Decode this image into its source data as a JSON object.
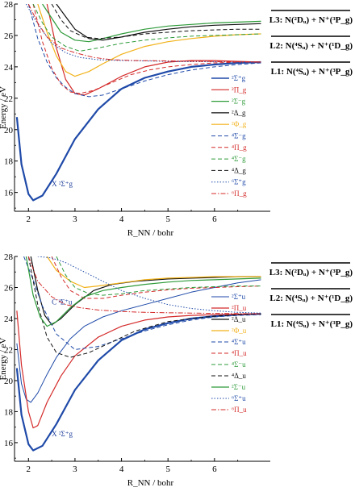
{
  "chart_data": [
    {
      "type": "line",
      "title": "",
      "xlabel": "R_NN / bohr",
      "ylabel": "Energy / eV",
      "xlim": [
        1.7,
        7.2
      ],
      "ylim": [
        14.8,
        28
      ],
      "xticks": [
        2,
        3,
        4,
        5,
        6
      ],
      "yticks": [
        16,
        18,
        20,
        22,
        24,
        26,
        28
      ],
      "grid": false,
      "legend_position": "right",
      "thresholds": [
        {
          "label": "L3: N(²Dᵤ) + N⁺(³P_g)",
          "y": 26.7
        },
        {
          "label": "L2: N(⁴Sᵤ) + N⁺(¹D_g)",
          "y": 25.6
        },
        {
          "label": "L1: N(⁴Sᵤ) + N⁺(³P_g)",
          "y": 24.3
        }
      ],
      "annotations": [
        {
          "text": "X ²Σ⁺g",
          "x": 2.5,
          "y": 16.4
        }
      ],
      "series": [
        {
          "name": "²Σ⁺g",
          "color": "#1f4aa8",
          "dash": "solid",
          "width": 2.2,
          "x": [
            1.75,
            1.85,
            2.0,
            2.1,
            2.3,
            2.6,
            3.0,
            3.5,
            4.0,
            4.5,
            5.0,
            5.5,
            6.0,
            6.5,
            7.0
          ],
          "y": [
            20.8,
            17.8,
            15.9,
            15.5,
            15.8,
            17.2,
            19.4,
            21.3,
            22.6,
            23.3,
            23.7,
            24.0,
            24.15,
            24.25,
            24.3
          ]
        },
        {
          "name": "²Π_g",
          "color": "#d42a2a",
          "dash": "solid",
          "width": 1.2,
          "x": [
            2.4,
            2.6,
            2.8,
            3.0,
            3.2,
            3.5,
            4.0,
            4.5,
            5.0,
            5.5,
            6.0,
            6.5,
            7.0
          ],
          "y": [
            28,
            25.2,
            23.2,
            22.3,
            22.2,
            22.6,
            23.4,
            24.0,
            24.3,
            24.4,
            24.4,
            24.35,
            24.3
          ]
        },
        {
          "name": "²Σ⁻g",
          "color": "#2e9b3a",
          "dash": "solid",
          "width": 1.2,
          "x": [
            2.3,
            2.5,
            2.7,
            3.0,
            3.3,
            3.6,
            4.0,
            4.5,
            5.0,
            5.5,
            6.0,
            6.5,
            7.0
          ],
          "y": [
            28,
            27.1,
            26.2,
            25.7,
            25.6,
            25.8,
            26.1,
            26.4,
            26.6,
            26.7,
            26.8,
            26.85,
            26.9
          ]
        },
        {
          "name": "²Δ_g",
          "color": "#111111",
          "dash": "solid",
          "width": 1.2,
          "x": [
            2.6,
            2.8,
            3.0,
            3.3,
            3.6,
            4.0,
            4.5,
            5.0,
            5.5,
            6.0,
            6.5,
            7.0
          ],
          "y": [
            28,
            27.2,
            26.4,
            25.8,
            25.7,
            25.9,
            26.2,
            26.4,
            26.55,
            26.65,
            26.7,
            26.75
          ]
        },
        {
          "name": "²Φ_g",
          "color": "#f2b21a",
          "dash": "solid",
          "width": 1.2,
          "x": [
            2.2,
            2.4,
            2.6,
            2.8,
            3.0,
            3.3,
            3.6,
            4.0,
            4.5,
            5.0,
            5.5,
            6.0,
            6.5,
            7.0
          ],
          "y": [
            28,
            26.2,
            24.7,
            23.7,
            23.4,
            23.7,
            24.2,
            24.8,
            25.3,
            25.6,
            25.8,
            25.95,
            26.05,
            26.1
          ]
        },
        {
          "name": "⁴Σ⁻g",
          "color": "#1f4aa8",
          "dash": "dash",
          "width": 1.0,
          "x": [
            2.0,
            2.2,
            2.4,
            2.6,
            2.8,
            3.0,
            3.3,
            3.6,
            4.0,
            4.5,
            5.0,
            5.5,
            6.0,
            6.5,
            7.0
          ],
          "y": [
            28,
            25.8,
            24.3,
            23.3,
            22.7,
            22.3,
            22.1,
            22.2,
            22.6,
            23.1,
            23.5,
            23.8,
            24.0,
            24.15,
            24.25
          ]
        },
        {
          "name": "⁴Π_g",
          "color": "#d42a2a",
          "dash": "dash",
          "width": 1.0,
          "x": [
            2.1,
            2.3,
            2.5,
            2.7,
            2.9,
            3.1,
            3.4,
            3.8,
            4.2,
            4.6,
            5.0,
            5.5,
            6.0,
            6.5,
            7.0
          ],
          "y": [
            28,
            25.6,
            23.9,
            22.9,
            22.4,
            22.3,
            22.5,
            23.0,
            23.5,
            23.8,
            24.0,
            24.15,
            24.25,
            24.3,
            24.3
          ]
        },
        {
          "name": "⁴Σ⁻g",
          "color": "#2e9b3a",
          "dash": "dash",
          "width": 1.0,
          "x": [
            2.1,
            2.3,
            2.5,
            2.8,
            3.1,
            3.5,
            4.0,
            4.5,
            5.0,
            5.5,
            6.0,
            6.5,
            7.0
          ],
          "y": [
            28,
            26.8,
            25.9,
            25.3,
            25.0,
            25.2,
            25.5,
            25.7,
            25.85,
            25.95,
            26.0,
            26.05,
            26.1
          ]
        },
        {
          "name": "⁴Δ_g",
          "color": "#111111",
          "dash": "dash",
          "width": 1.0,
          "x": [
            2.5,
            2.7,
            2.9,
            3.2,
            3.5,
            4.0,
            4.5,
            5.0,
            5.5,
            6.0,
            6.5,
            7.0
          ],
          "y": [
            28,
            27.0,
            26.3,
            25.9,
            25.8,
            25.9,
            26.1,
            26.2,
            26.3,
            26.35,
            26.4,
            26.4
          ]
        },
        {
          "name": "⁶Σ⁺g",
          "color": "#1f4aa8",
          "dash": "dot",
          "width": 1.0,
          "x": [
            1.95,
            2.1,
            2.3,
            2.5,
            2.8,
            3.1,
            3.5,
            4.0,
            4.5,
            5.0,
            5.5,
            6.0,
            6.5,
            7.0
          ],
          "y": [
            28,
            27.2,
            26.3,
            25.5,
            24.9,
            24.6,
            24.45,
            24.4,
            24.38,
            24.35,
            24.33,
            24.32,
            24.31,
            24.3
          ]
        },
        {
          "name": "⁶Π_g",
          "color": "#d42a2a",
          "dash": "dashdot",
          "width": 1.0,
          "x": [
            2.0,
            2.2,
            2.4,
            2.7,
            3.0,
            3.4,
            3.8,
            4.3,
            5.0,
            5.5,
            6.0,
            6.5,
            7.0
          ],
          "y": [
            28,
            26.8,
            25.9,
            25.2,
            24.9,
            24.6,
            24.45,
            24.4,
            24.38,
            24.36,
            24.34,
            24.32,
            24.3
          ]
        }
      ]
    },
    {
      "type": "line",
      "title": "",
      "xlabel": "R_NN / bohr",
      "ylabel": "Energy / eV",
      "xlim": [
        1.7,
        7.2
      ],
      "ylim": [
        14.8,
        28
      ],
      "xticks": [
        2,
        3,
        4,
        5,
        6
      ],
      "yticks": [
        16,
        18,
        20,
        22,
        24,
        26,
        28
      ],
      "grid": false,
      "legend_position": "right",
      "thresholds": [
        {
          "label": "L3: N(²Dᵤ) + N⁺(³P_g)",
          "y": 26.7
        },
        {
          "label": "L2: N(⁴Sᵤ) + N⁺(¹D_g)",
          "y": 25.6
        },
        {
          "label": "L1: N(⁴Sᵤ) + N⁺(³P_g)",
          "y": 24.3
        }
      ],
      "annotations": [
        {
          "text": "X ²Σ⁺g",
          "x": 2.5,
          "y": 16.4
        },
        {
          "text": "C ²Σ⁺u",
          "x": 2.5,
          "y": 24.9
        }
      ],
      "series": [
        {
          "name": "X ²Σ⁺g",
          "color": "#1f4aa8",
          "dash": "solid",
          "width": 2.2,
          "x": [
            1.75,
            1.85,
            2.0,
            2.1,
            2.3,
            2.6,
            3.0,
            3.5,
            4.0,
            4.5,
            5.0,
            5.5,
            6.0,
            6.5,
            7.0
          ],
          "y": [
            20.8,
            17.8,
            15.9,
            15.5,
            15.8,
            17.2,
            19.4,
            21.3,
            22.6,
            23.3,
            23.7,
            24.0,
            24.15,
            24.25,
            24.3
          ]
        },
        {
          "name": "²Σ⁺u",
          "color": "#1f4aa8",
          "dash": "solid",
          "width": 1.0,
          "x": [
            1.75,
            1.85,
            1.95,
            2.05,
            2.2,
            2.4,
            2.6,
            2.9,
            3.2,
            3.6,
            4.0,
            4.5,
            5.0,
            5.5,
            6.0,
            6.5,
            7.0
          ],
          "y": [
            22.4,
            19.8,
            18.8,
            18.6,
            19.2,
            20.4,
            21.5,
            22.7,
            23.5,
            24.1,
            24.5,
            24.9,
            25.3,
            25.7,
            26.0,
            26.3,
            26.5
          ]
        },
        {
          "name": "²Π_u",
          "color": "#d42a2a",
          "dash": "solid",
          "width": 1.2,
          "x": [
            1.75,
            1.85,
            2.0,
            2.1,
            2.2,
            2.4,
            2.7,
            3.0,
            3.5,
            4.0,
            4.5,
            5.0,
            5.5,
            6.0,
            6.5,
            7.0
          ],
          "y": [
            24.5,
            21.0,
            18.0,
            16.95,
            17.1,
            18.6,
            20.3,
            21.6,
            22.8,
            23.5,
            23.9,
            24.1,
            24.2,
            24.25,
            24.28,
            24.3
          ]
        },
        {
          "name": "²Δ_u",
          "color": "#111111",
          "dash": "solid",
          "width": 1.2,
          "x": [
            2.05,
            2.2,
            2.35,
            2.5,
            2.7,
            3.0,
            3.4,
            3.8,
            4.3,
            5.0,
            5.5,
            6.0,
            6.5,
            7.0
          ],
          "y": [
            28,
            25.8,
            24.2,
            23.6,
            24.0,
            24.9,
            25.8,
            26.2,
            26.4,
            26.55,
            26.6,
            26.65,
            26.7,
            26.7
          ]
        },
        {
          "name": "²Φ_u",
          "color": "#f2b21a",
          "dash": "solid",
          "width": 1.2,
          "x": [
            2.4,
            2.6,
            2.9,
            3.2,
            3.5,
            4.0,
            4.5,
            5.0,
            5.5,
            6.0,
            6.5,
            7.0
          ],
          "y": [
            28,
            27.1,
            26.4,
            26.0,
            26.1,
            26.3,
            26.5,
            26.6,
            26.65,
            26.7,
            26.7,
            26.7
          ]
        },
        {
          "name": "⁴Σ⁺u",
          "color": "#1f4aa8",
          "dash": "dash",
          "width": 1.0,
          "x": [
            1.9,
            2.1,
            2.3,
            2.6,
            3.0,
            3.5,
            4.0,
            4.5,
            5.0,
            5.5,
            6.0,
            6.5,
            7.0
          ],
          "y": [
            28,
            26.5,
            24.8,
            23.0,
            22.0,
            22.2,
            22.7,
            23.2,
            23.6,
            23.9,
            24.1,
            24.2,
            24.25
          ]
        },
        {
          "name": "⁴Π_u",
          "color": "#d42a2a",
          "dash": "dash",
          "width": 1.0,
          "x": [
            2.5,
            2.7,
            2.9,
            3.2,
            3.6,
            4.0,
            4.5,
            5.0,
            5.5,
            6.0,
            6.5,
            7.0
          ],
          "y": [
            28,
            26.7,
            25.8,
            25.3,
            25.3,
            25.5,
            25.7,
            25.85,
            25.95,
            26.0,
            26.05,
            26.1
          ]
        },
        {
          "name": "⁴Σ⁻u",
          "color": "#2e9b3a",
          "dash": "dash",
          "width": 1.0,
          "x": [
            2.6,
            2.8,
            3.0,
            3.3,
            3.6,
            4.0,
            4.5,
            5.0,
            5.5,
            6.0,
            6.5,
            7.0
          ],
          "y": [
            28,
            26.8,
            26.0,
            25.6,
            25.5,
            25.6,
            25.8,
            25.9,
            26.0,
            26.05,
            26.1,
            26.1
          ]
        },
        {
          "name": "⁴Δ_u",
          "color": "#111111",
          "dash": "dash",
          "width": 1.0,
          "x": [
            2.0,
            2.2,
            2.4,
            2.6,
            2.9,
            3.3,
            3.8,
            4.3,
            5.0,
            5.5,
            6.0,
            6.5,
            7.0
          ],
          "y": [
            28,
            24.9,
            22.8,
            21.8,
            21.5,
            21.8,
            22.5,
            23.2,
            23.8,
            24.0,
            24.15,
            24.25,
            24.3
          ]
        },
        {
          "name": "²Σ⁻u",
          "color": "#2e9b3a",
          "dash": "solid",
          "width": 1.2,
          "x": [
            1.95,
            2.1,
            2.25,
            2.4,
            2.6,
            2.9,
            3.2,
            3.6,
            4.0,
            4.5,
            5.0,
            5.5,
            6.0,
            6.5,
            7.0
          ],
          "y": [
            28,
            25.5,
            24.1,
            23.5,
            23.8,
            24.7,
            25.4,
            25.8,
            26.0,
            26.2,
            26.35,
            26.45,
            26.5,
            26.55,
            26.6
          ]
        },
        {
          "name": "⁶Σ⁺u",
          "color": "#1f4aa8",
          "dash": "dot",
          "width": 1.0,
          "x": [
            2.2,
            2.5,
            2.8,
            3.2,
            3.6,
            4.0,
            4.5,
            5.0,
            5.5,
            6.0,
            6.5,
            7.0
          ],
          "y": [
            28,
            27.9,
            27.6,
            27.0,
            26.4,
            25.8,
            25.3,
            24.9,
            24.65,
            24.5,
            24.4,
            24.35
          ]
        },
        {
          "name": "⁶Π_u",
          "color": "#d42a2a",
          "dash": "dashdot",
          "width": 1.0,
          "x": [
            2.0,
            2.2,
            2.5,
            2.8,
            3.1,
            3.5,
            4.0,
            4.5,
            5.0,
            5.5,
            6.0,
            6.5,
            7.0
          ],
          "y": [
            28,
            26.4,
            25.4,
            24.9,
            24.7,
            24.55,
            24.45,
            24.4,
            24.37,
            24.35,
            24.33,
            24.32,
            24.3
          ]
        }
      ]
    }
  ]
}
